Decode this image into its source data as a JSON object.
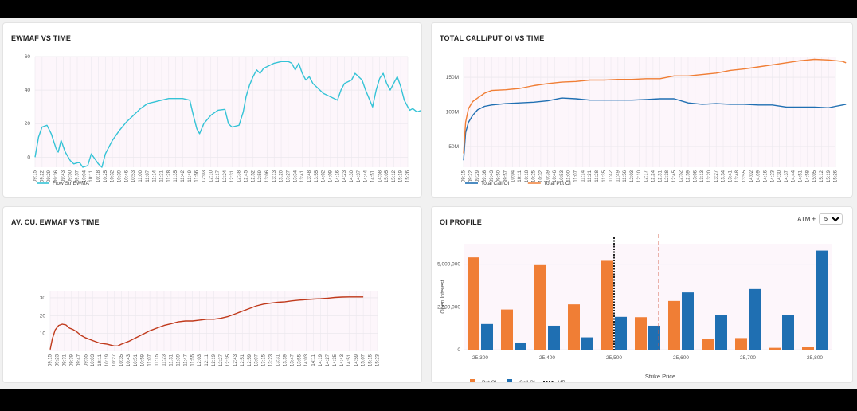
{
  "colors": {
    "ewmaf": "#35c3d6",
    "call": "#1f6fb2",
    "put": "#f07e35",
    "avcu": "#c0391b",
    "mp": "#222222",
    "spot": "#d0533a",
    "plot_bg": "#fdf6fb",
    "grid": "#ece8ee"
  },
  "chart_data": [
    {
      "id": "ewmaf",
      "type": "line",
      "title": "EWMAF VS TIME",
      "x_ticks": [
        "09:15",
        "09:22",
        "09:29",
        "09:36",
        "09:43",
        "09:50",
        "09:57",
        "10:04",
        "10:11",
        "10:18",
        "10:25",
        "10:32",
        "10:39",
        "10:46",
        "10:53",
        "11:00",
        "11:07",
        "11:14",
        "11:21",
        "11:28",
        "11:35",
        "11:42",
        "11:49",
        "11:56",
        "12:03",
        "12:10",
        "12:17",
        "12:24",
        "12:31",
        "12:38",
        "12:45",
        "12:52",
        "12:59",
        "13:06",
        "13:13",
        "13:20",
        "13:27",
        "13:34",
        "13:41",
        "13:48",
        "13:55",
        "14:02",
        "14:09",
        "14:16",
        "14:23",
        "14:30",
        "14:37",
        "14:44",
        "14:51",
        "14:58",
        "15:05",
        "15:12",
        "15:19",
        "15:26"
      ],
      "y_ticks": [
        0,
        20,
        40,
        60
      ],
      "ylim": [
        -6,
        60
      ],
      "series": [
        {
          "name": "Flow Str EWMA",
          "points": [
            [
              0,
              0
            ],
            [
              0.5,
              12
            ],
            [
              1,
              18
            ],
            [
              1.7,
              19
            ],
            [
              2.3,
              14
            ],
            [
              3,
              5
            ],
            [
              3.3,
              3
            ],
            [
              3.7,
              10
            ],
            [
              4.3,
              3
            ],
            [
              5,
              -2
            ],
            [
              5.5,
              -4
            ],
            [
              6.3,
              -3
            ],
            [
              6.8,
              -6
            ],
            [
              7.5,
              -5
            ],
            [
              8,
              2
            ],
            [
              8.5,
              -1
            ],
            [
              9,
              -4
            ],
            [
              9.5,
              -6
            ],
            [
              10,
              2
            ],
            [
              11,
              10
            ],
            [
              12,
              16
            ],
            [
              13,
              21
            ],
            [
              14,
              25
            ],
            [
              15,
              29
            ],
            [
              16,
              32
            ],
            [
              17,
              33
            ],
            [
              18,
              34
            ],
            [
              19,
              35
            ],
            [
              20,
              35
            ],
            [
              21,
              35
            ],
            [
              22,
              34
            ],
            [
              22.5,
              25
            ],
            [
              23,
              17
            ],
            [
              23.4,
              14
            ],
            [
              24,
              20
            ],
            [
              25,
              25
            ],
            [
              26,
              28
            ],
            [
              27,
              28.5
            ],
            [
              27.5,
              20
            ],
            [
              28,
              18
            ],
            [
              29,
              19
            ],
            [
              29.6,
              27
            ],
            [
              30,
              36
            ],
            [
              30.5,
              43
            ],
            [
              31,
              48
            ],
            [
              31.5,
              52
            ],
            [
              32,
              50
            ],
            [
              32.5,
              53
            ],
            [
              33,
              54
            ],
            [
              34,
              56
            ],
            [
              35,
              57
            ],
            [
              36,
              57
            ],
            [
              36.5,
              56
            ],
            [
              37,
              52
            ],
            [
              37.5,
              56
            ],
            [
              38,
              50
            ],
            [
              38.5,
              46
            ],
            [
              39,
              48
            ],
            [
              39.5,
              44
            ],
            [
              40,
              42
            ],
            [
              41,
              38
            ],
            [
              42,
              36
            ],
            [
              43,
              34
            ],
            [
              43.5,
              40
            ],
            [
              44,
              44
            ],
            [
              45,
              46
            ],
            [
              45.5,
              50
            ],
            [
              46,
              48
            ],
            [
              46.5,
              46
            ],
            [
              47,
              40
            ],
            [
              47.5,
              35
            ],
            [
              48,
              30
            ],
            [
              48.5,
              40
            ],
            [
              49,
              47
            ],
            [
              49.5,
              50
            ],
            [
              50,
              44
            ],
            [
              50.5,
              40
            ],
            [
              51,
              44
            ],
            [
              51.5,
              48
            ],
            [
              52,
              42
            ],
            [
              52.5,
              34
            ],
            [
              53,
              30
            ],
            [
              53.3,
              28
            ],
            [
              53.7,
              29
            ],
            [
              54.3,
              27
            ],
            [
              55,
              28
            ],
            [
              56,
              28
            ],
            [
              56.3,
              27
            ],
            [
              56.7,
              28
            ]
          ]
        }
      ]
    },
    {
      "id": "totaloi",
      "type": "line",
      "title": "TOTAL CALL/PUT OI VS TIME",
      "x_ticks": [
        "09:15",
        "09:22",
        "09:29",
        "09:36",
        "09:43",
        "09:50",
        "09:57",
        "10:04",
        "10:11",
        "10:18",
        "10:25",
        "10:32",
        "10:39",
        "10:46",
        "10:53",
        "11:00",
        "11:07",
        "11:14",
        "11:21",
        "11:28",
        "11:35",
        "11:42",
        "11:49",
        "11:56",
        "12:03",
        "12:10",
        "12:17",
        "12:24",
        "12:31",
        "12:38",
        "12:45",
        "12:52",
        "12:59",
        "13:06",
        "13:13",
        "13:20",
        "13:27",
        "13:34",
        "13:41",
        "13:48",
        "13:55",
        "14:02",
        "14:09",
        "14:16",
        "14:23",
        "14:30",
        "14:37",
        "14:44",
        "14:51",
        "14:58",
        "15:05",
        "15:12",
        "15:19",
        "15:26"
      ],
      "y_ticks": [
        50,
        100,
        150
      ],
      "y_tick_labels": [
        "50M",
        "100M",
        "150M"
      ],
      "ylim": [
        20,
        180
      ],
      "unit": "M",
      "series": [
        {
          "name": "Total Call OI",
          "points": [
            [
              0,
              30
            ],
            [
              0.3,
              70
            ],
            [
              0.7,
              85
            ],
            [
              1.3,
              95
            ],
            [
              2,
              103
            ],
            [
              3,
              108
            ],
            [
              4,
              110
            ],
            [
              6,
              112
            ],
            [
              8,
              113
            ],
            [
              10,
              114
            ],
            [
              12,
              116
            ],
            [
              14,
              120
            ],
            [
              16,
              119
            ],
            [
              18,
              117
            ],
            [
              20,
              117
            ],
            [
              22,
              117
            ],
            [
              24,
              117
            ],
            [
              26,
              118
            ],
            [
              28,
              119
            ],
            [
              30,
              119
            ],
            [
              32,
              113
            ],
            [
              34,
              111
            ],
            [
              36,
              112
            ],
            [
              38,
              111
            ],
            [
              40,
              111
            ],
            [
              42,
              110
            ],
            [
              44,
              110
            ],
            [
              46,
              107
            ],
            [
              48,
              107
            ],
            [
              50,
              107
            ],
            [
              52,
              106
            ],
            [
              53,
              108
            ],
            [
              54,
              110
            ],
            [
              54.5,
              111
            ]
          ]
        },
        {
          "name": "Total Put OI",
          "points": [
            [
              0,
              40
            ],
            [
              0.3,
              85
            ],
            [
              0.7,
              105
            ],
            [
              1.3,
              115
            ],
            [
              2,
              120
            ],
            [
              3,
              127
            ],
            [
              4,
              131
            ],
            [
              6,
              132
            ],
            [
              8,
              134
            ],
            [
              10,
              138
            ],
            [
              12,
              141
            ],
            [
              14,
              143
            ],
            [
              16,
              144
            ],
            [
              18,
              146
            ],
            [
              20,
              146
            ],
            [
              22,
              147
            ],
            [
              24,
              147
            ],
            [
              26,
              148
            ],
            [
              28,
              148
            ],
            [
              30,
              152
            ],
            [
              32,
              152
            ],
            [
              34,
              154
            ],
            [
              36,
              156
            ],
            [
              38,
              160
            ],
            [
              40,
              162
            ],
            [
              42,
              165
            ],
            [
              44,
              168
            ],
            [
              46,
              171
            ],
            [
              48,
              174
            ],
            [
              50,
              176
            ],
            [
              52,
              175
            ],
            [
              53,
              174
            ],
            [
              54,
              173
            ],
            [
              54.5,
              171
            ]
          ]
        }
      ]
    },
    {
      "id": "avcu",
      "type": "line",
      "title": "AV. CU. EWMAF VS TIME",
      "x_ticks": [
        "09:15",
        "09:23",
        "09:31",
        "09:39",
        "09:47",
        "09:55",
        "10:03",
        "10:11",
        "10:19",
        "10:27",
        "10:35",
        "10:43",
        "10:51",
        "10:59",
        "11:07",
        "11:15",
        "11:23",
        "11:31",
        "11:39",
        "11:47",
        "11:55",
        "12:03",
        "12:11",
        "12:19",
        "12:27",
        "12:35",
        "12:43",
        "12:51",
        "12:59",
        "13:07",
        "13:15",
        "13:23",
        "13:31",
        "13:39",
        "13:47",
        "13:55",
        "14:03",
        "14:11",
        "14:19",
        "14:27",
        "14:35",
        "14:43",
        "14:51",
        "14:59",
        "15:07",
        "15:15",
        "15:23"
      ],
      "y_ticks": [
        10,
        20,
        30
      ],
      "ylim": [
        0,
        34
      ],
      "series": [
        {
          "name": "Av. Cu. EWMAF",
          "points": [
            [
              0,
              1
            ],
            [
              0.3,
              7
            ],
            [
              0.7,
              12
            ],
            [
              1.2,
              14.5
            ],
            [
              1.7,
              15.2
            ],
            [
              2.2,
              14.8
            ],
            [
              2.7,
              13
            ],
            [
              3.2,
              12.2
            ],
            [
              3.7,
              11
            ],
            [
              4.3,
              9
            ],
            [
              5,
              7.5
            ],
            [
              6,
              6
            ],
            [
              7,
              4.5
            ],
            [
              8,
              4
            ],
            [
              9,
              3
            ],
            [
              9.5,
              3
            ],
            [
              10,
              4
            ],
            [
              11,
              5.5
            ],
            [
              12,
              7.5
            ],
            [
              13,
              9.5
            ],
            [
              14,
              11.5
            ],
            [
              15,
              13
            ],
            [
              16,
              14.5
            ],
            [
              17,
              15.5
            ],
            [
              18,
              16.5
            ],
            [
              19,
              17
            ],
            [
              20,
              17
            ],
            [
              21,
              17.5
            ],
            [
              22,
              18
            ],
            [
              23,
              18
            ],
            [
              24,
              18.5
            ],
            [
              25,
              19.5
            ],
            [
              26,
              21
            ],
            [
              27,
              22.5
            ],
            [
              28,
              24
            ],
            [
              29,
              25.5
            ],
            [
              30,
              26.5
            ],
            [
              31,
              27
            ],
            [
              32,
              27.5
            ],
            [
              33,
              27.8
            ],
            [
              34,
              28.3
            ],
            [
              35,
              28.7
            ],
            [
              36,
              29
            ],
            [
              37,
              29.3
            ],
            [
              38,
              29.5
            ],
            [
              39,
              29.8
            ],
            [
              40,
              30.2
            ],
            [
              41,
              30.4
            ],
            [
              42,
              30.5
            ],
            [
              43,
              30.5
            ],
            [
              44,
              30.5
            ]
          ]
        }
      ]
    },
    {
      "id": "oiprofile",
      "type": "bar",
      "title": "OI PROFILE",
      "categories": [
        "25,300",
        "25,350",
        "25,400",
        "25,450",
        "25,500",
        "25,550",
        "25,600",
        "25,650",
        "25,700",
        "25,750",
        "25,800"
      ],
      "x_tick_labels": [
        "25,300",
        "25,400",
        "25,500",
        "25,600",
        "25,700",
        "25,800"
      ],
      "series": [
        {
          "name": "Put OI",
          "values": [
            5400000,
            2350000,
            4950000,
            2650000,
            5200000,
            1900000,
            2850000,
            620000,
            680000,
            110000,
            140000
          ]
        },
        {
          "name": "Call OI",
          "values": [
            1500000,
            420000,
            1400000,
            720000,
            1920000,
            1400000,
            3350000,
            2020000,
            3550000,
            2050000,
            5800000
          ]
        }
      ],
      "y_ticks": [
        0,
        2500000,
        5000000
      ],
      "y_tick_labels": [
        "0",
        "2,500,000",
        "5,000,000"
      ],
      "ylim": [
        0,
        6200000
      ],
      "ylabel": "Open Interest",
      "xlabel": "Strike Price",
      "mp_strike": 25500,
      "spot_strike": 25567,
      "legend": [
        "Put OI",
        "Call OI",
        "MP"
      ]
    }
  ],
  "controls": {
    "atm_label": "ATM ±",
    "atm_value": "5",
    "atm_options": [
      "5"
    ]
  }
}
